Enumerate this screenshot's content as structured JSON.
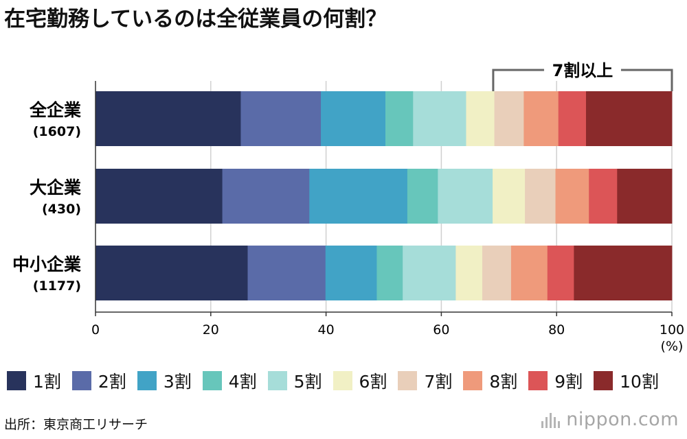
{
  "title": "在宅勤務しているのは全従業員の何割？",
  "chart_data": {
    "type": "bar",
    "orientation": "horizontal",
    "stacked": true,
    "categories": [
      "全企業",
      "大企業",
      "中小企業"
    ],
    "category_counts": [
      "(1607)",
      "(430)",
      "(1177)"
    ],
    "series": [
      {
        "name": "1割",
        "color": "#28335c",
        "values": [
          25.2,
          22.0,
          26.4
        ]
      },
      {
        "name": "2割",
        "color": "#5a6ba8",
        "values": [
          13.9,
          15.1,
          13.5
        ]
      },
      {
        "name": "3割",
        "color": "#41a3c6",
        "values": [
          11.2,
          17.0,
          8.9
        ]
      },
      {
        "name": "4割",
        "color": "#67c6bb",
        "values": [
          4.8,
          5.3,
          4.5
        ]
      },
      {
        "name": "5割",
        "color": "#a6ddd9",
        "values": [
          9.2,
          9.5,
          9.2
        ]
      },
      {
        "name": "6割",
        "color": "#f1f0c5",
        "values": [
          4.9,
          5.6,
          4.6
        ]
      },
      {
        "name": "7割",
        "color": "#e9cfba",
        "values": [
          5.1,
          5.3,
          5.0
        ]
      },
      {
        "name": "8割",
        "color": "#ef9a7b",
        "values": [
          6.0,
          5.8,
          6.3
        ]
      },
      {
        "name": "9割",
        "color": "#dc5557",
        "values": [
          4.8,
          4.9,
          4.6
        ]
      },
      {
        "name": "10割",
        "color": "#8a2a2b",
        "values": [
          14.9,
          9.5,
          17.0
        ]
      }
    ],
    "xlim": [
      0,
      100
    ],
    "xticks": [
      0,
      20,
      40,
      60,
      80,
      100
    ],
    "xunit": "(%)",
    "grid": true,
    "legend_position": "bottom",
    "annotation": {
      "label": "7割以上",
      "from": 69,
      "to": 100
    }
  },
  "source": "出所：東京商工リサーチ",
  "brand": "nippon.com"
}
